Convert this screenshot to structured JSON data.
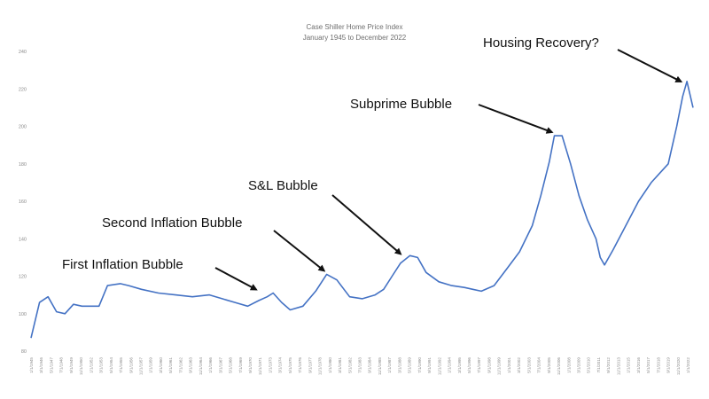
{
  "chart_data": {
    "type": "line",
    "title": "Case Shiller Home Price Index",
    "subtitle": "January 1945 to December 2022",
    "xlabel": "",
    "ylabel": "",
    "ylim": [
      80,
      240
    ],
    "y_ticks": [
      80,
      100,
      120,
      140,
      160,
      180,
      200,
      220,
      240
    ],
    "x_range": [
      1945,
      2022.92
    ],
    "grid": false,
    "legend": "none",
    "line_color": "#4472c4",
    "x_tick_labels": [
      "1/1/1945",
      "3/1/1946",
      "5/1/1947",
      "7/1/1948",
      "9/1/1949",
      "11/1/1950",
      "1/1/1952",
      "3/1/1953",
      "5/1/1954",
      "7/1/1955",
      "9/1/1956",
      "11/1/1957",
      "1/1/1959",
      "3/1/1960",
      "5/1/1961",
      "7/1/1962",
      "9/1/1963",
      "11/1/1964",
      "1/1/1966",
      "3/1/1967",
      "5/1/1968",
      "7/1/1969",
      "9/1/1970",
      "11/1/1971",
      "1/1/1973",
      "3/1/1974",
      "5/1/1975",
      "7/1/1976",
      "9/1/1977",
      "11/1/1978",
      "1/1/1980",
      "3/1/1981",
      "5/1/1982",
      "7/1/1983",
      "9/1/1984",
      "11/1/1985",
      "1/1/1987",
      "3/1/1988",
      "5/1/1989",
      "7/1/1990",
      "9/1/1991",
      "11/1/1992",
      "1/1/1994",
      "3/1/1995",
      "5/1/1996",
      "7/1/1997",
      "9/1/1998",
      "11/1/1999",
      "1/1/2001",
      "3/1/2002",
      "5/1/2003",
      "7/1/2004",
      "9/1/2005",
      "11/1/2006",
      "1/1/2008",
      "3/1/2009",
      "5/1/2010",
      "7/1/2011",
      "9/1/2012",
      "11/1/2013",
      "1/1/2015",
      "3/1/2016",
      "5/1/2017",
      "7/1/2018",
      "9/1/2019",
      "11/1/2020",
      "1/1/2022"
    ],
    "x": [
      1945.0,
      1946.0,
      1947.0,
      1948.0,
      1949.0,
      1950.0,
      1951.0,
      1953.0,
      1954.0,
      1955.5,
      1956.5,
      1958.0,
      1960.0,
      1962.0,
      1964.0,
      1966.0,
      1967.5,
      1969.0,
      1970.5,
      1971.8,
      1972.8,
      1973.5,
      1974.5,
      1975.5,
      1977.0,
      1978.5,
      1979.8,
      1981.0,
      1982.5,
      1984.0,
      1985.5,
      1986.5,
      1987.5,
      1988.5,
      1989.6,
      1990.5,
      1991.5,
      1993.0,
      1994.5,
      1996.0,
      1997.0,
      1998.0,
      1999.5,
      2001.0,
      2002.5,
      2004.0,
      2005.0,
      2006.0,
      2006.6,
      2007.5,
      2008.5,
      2009.5,
      2010.5,
      2011.5,
      2012.0,
      2012.5,
      2013.5,
      2015.0,
      2016.5,
      2018.0,
      2019.0,
      2020.0,
      2021.0,
      2021.7,
      2022.2,
      2022.92
    ],
    "y": [
      87,
      106,
      109,
      101,
      100,
      105,
      104,
      104,
      115,
      116,
      115,
      113,
      111,
      110,
      109,
      110,
      108,
      106,
      104,
      107,
      109,
      111,
      106,
      102,
      104,
      112,
      121,
      118,
      109,
      108,
      110,
      113,
      120,
      127,
      131,
      130,
      122,
      117,
      115,
      114,
      113,
      112,
      115,
      124,
      133,
      147,
      163,
      181,
      195,
      195,
      180,
      163,
      150,
      140,
      130,
      126,
      134,
      147,
      160,
      170,
      175,
      180,
      200,
      216,
      224,
      210
    ],
    "annotations": [
      {
        "text": "First Inflation Bubble",
        "target_x": 1971.5,
        "target_y": 111
      },
      {
        "text": "Second Inflation Bubble",
        "target_x": 1979.5,
        "target_y": 121
      },
      {
        "text": "S&L Bubble",
        "target_x": 1988.5,
        "target_y": 130
      },
      {
        "text": "Subprime Bubble",
        "target_x": 2006.3,
        "target_y": 195
      },
      {
        "text": "Housing Recovery?",
        "target_x": 2021.5,
        "target_y": 222
      }
    ]
  }
}
